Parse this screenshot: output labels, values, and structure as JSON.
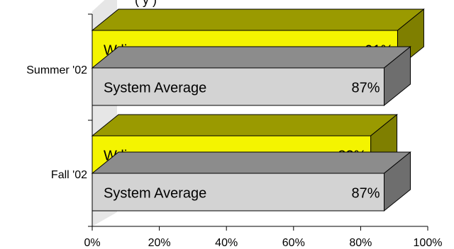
{
  "chart_data": {
    "type": "bar",
    "orientation": "horizontal",
    "style": "3d",
    "title": "",
    "visible_title_fragment": "(                        y                           )",
    "categories": [
      "Summer '02",
      "Fall '02"
    ],
    "series": [
      {
        "values": [
          91,
          83
        ],
        "color": "#f4f400"
      },
      {
        "values": [
          87,
          87
        ],
        "color": "#d3d3d3"
      }
    ],
    "bar_labels": [
      [
        "W line",
        "System Average"
      ],
      [
        "W line",
        "System Average"
      ]
    ],
    "value_labels": [
      [
        "91%",
        "87%"
      ],
      [
        "83%",
        "87%"
      ]
    ],
    "xlim": [
      0,
      100
    ],
    "x_ticks": [
      0,
      20,
      40,
      60,
      80,
      100
    ],
    "x_tick_labels": [
      "0%",
      "20%",
      "40%",
      "60%",
      "80%",
      "100%"
    ],
    "grid": false,
    "legend": "none"
  }
}
